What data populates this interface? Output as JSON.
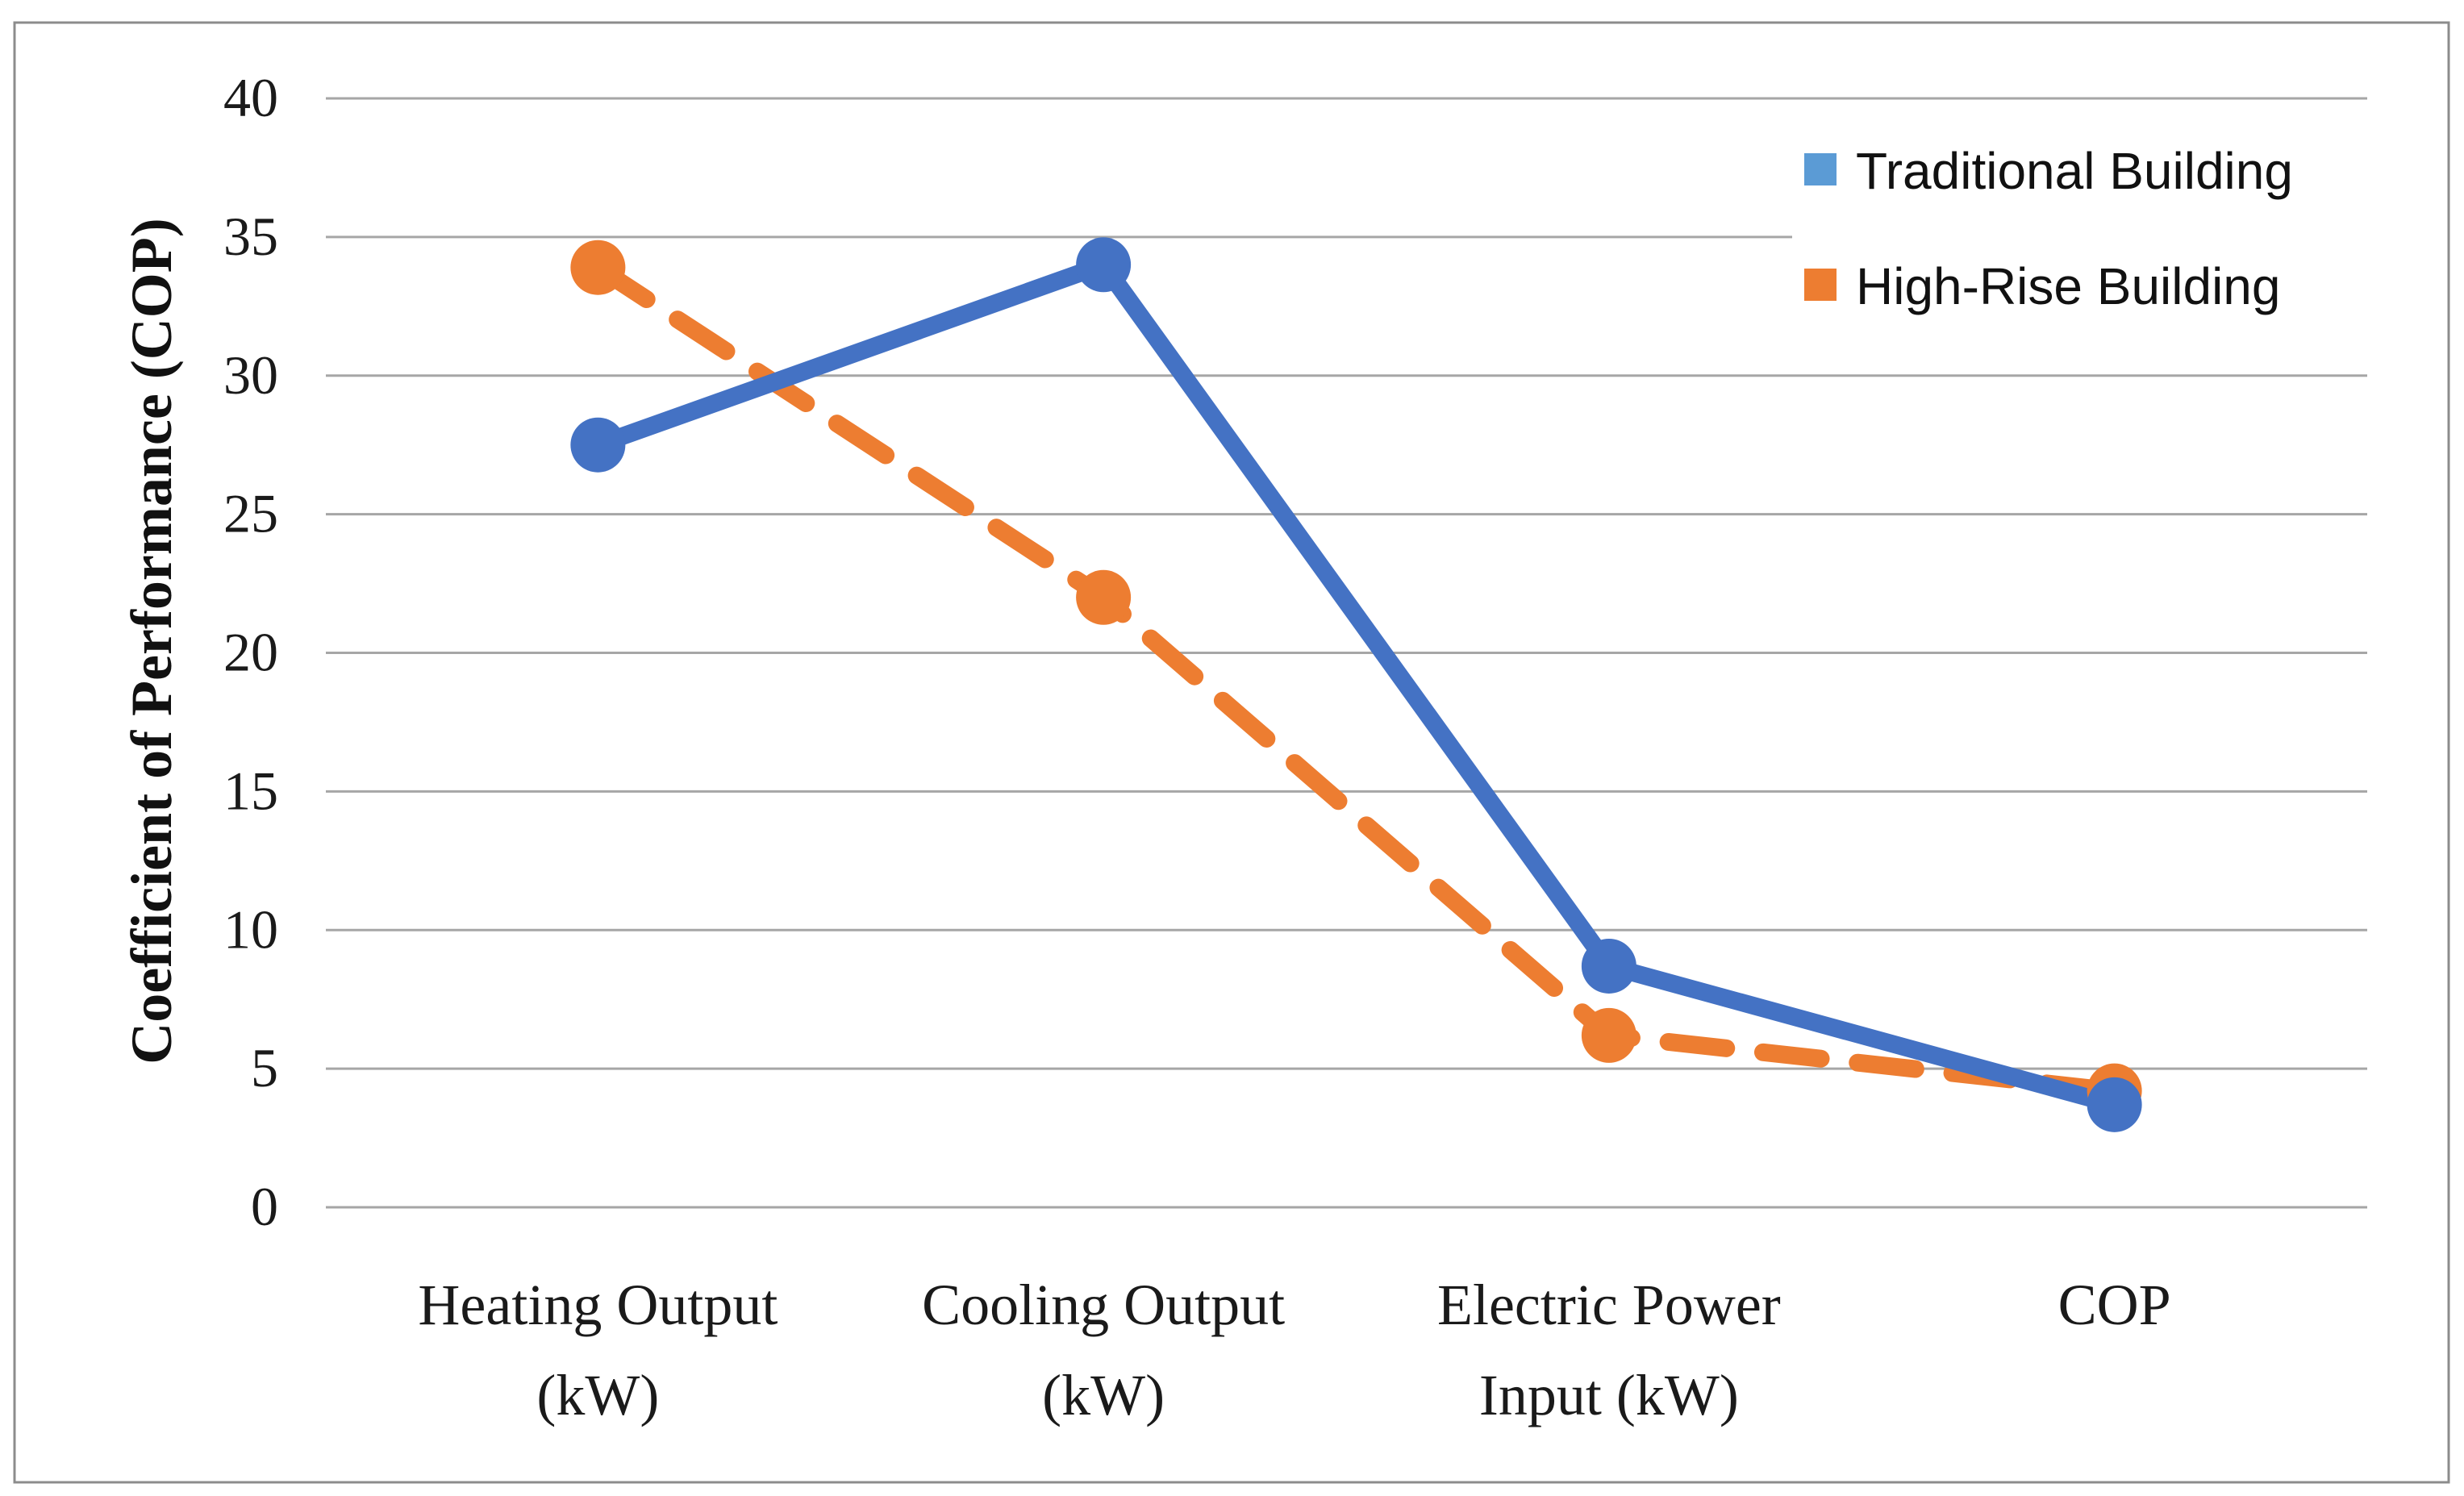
{
  "chart_data": {
    "type": "line",
    "title": "",
    "xlabel": "",
    "ylabel": "Coefficient of Performance (COP)",
    "categories": [
      [
        "Heating Output",
        "(kW)"
      ],
      [
        "Cooling Output",
        "(kW)"
      ],
      [
        "Electric Power",
        "Input (kW)"
      ],
      [
        "COP"
      ]
    ],
    "ylim": [
      0,
      40
    ],
    "yticks": [
      0,
      5,
      10,
      15,
      20,
      25,
      30,
      35,
      40
    ],
    "grid": true,
    "legend_position": "top-right",
    "series": [
      {
        "name": "Traditional Building",
        "values": [
          27.5,
          34.0,
          8.7,
          3.7
        ],
        "line_color": "#4472c4",
        "legend_color": "#5b9bd5",
        "dash": "solid"
      },
      {
        "name": "High-Rise Building",
        "values": [
          33.9,
          22.0,
          6.2,
          4.2
        ],
        "line_color": "#ed7d31",
        "legend_color": "#ed7d31",
        "dash": "dashed"
      }
    ]
  }
}
